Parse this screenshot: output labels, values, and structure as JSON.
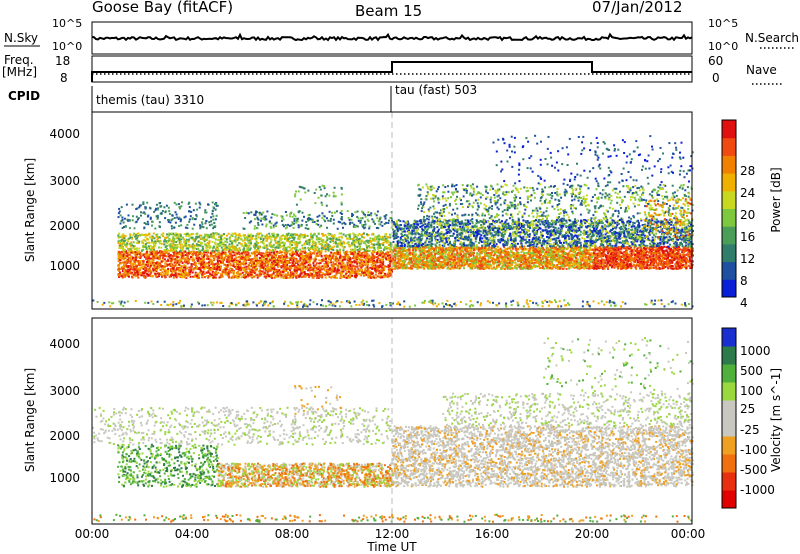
{
  "header": {
    "site": "Goose Bay (fitACF)",
    "beam": "Beam 15",
    "date": "07/Jan/2012"
  },
  "top_panels": {
    "nsky_label": "N.Sky",
    "nsearch_label": "N.Search",
    "nsky_ticks": [
      "10^5",
      "10^0"
    ],
    "nsearch_ticks": [
      "10^5",
      "10^0"
    ],
    "freq_label_1": "Freq.",
    "freq_label_2": "[MHz]",
    "freq_ticks": [
      "18",
      "8"
    ],
    "nave_label": "Nave",
    "nave_ticks": [
      "60",
      "0"
    ],
    "cpid_label": "CPID",
    "cpid_segments": [
      {
        "name": "themis (tau) 3310",
        "start_hour": 0,
        "end_hour": 12
      },
      {
        "name": "tau (fast) 503",
        "start_hour": 12,
        "end_hour": 24
      }
    ],
    "freq_steps": [
      {
        "start_hour": 0,
        "end_hour": 12,
        "level": "low"
      },
      {
        "start_hour": 12,
        "end_hour": 20,
        "level": "high"
      },
      {
        "start_hour": 20,
        "end_hour": 24,
        "level": "low"
      }
    ]
  },
  "chart_data": [
    {
      "type": "heatmap",
      "title": "",
      "ylabel": "Slant Range [km]",
      "xlabel": "",
      "ylim": [
        180,
        4600
      ],
      "yticks": [
        "1000",
        "2000",
        "3000",
        "4000"
      ],
      "colorbar_label": "Power [dB]",
      "colorbar_ticks": [
        "28",
        "24",
        "20",
        "16",
        "12",
        "8",
        "4"
      ],
      "colors": [
        "#0a1fd8",
        "#1e4fa0",
        "#2f7d6a",
        "#4a9e5a",
        "#7ec840",
        "#c8d820",
        "#f0b000",
        "#f08000",
        "#f04a10",
        "#e01010"
      ]
    },
    {
      "type": "heatmap",
      "title": "",
      "ylabel": "Slant Range [km]",
      "xlabel": "Time UT",
      "ylim": [
        180,
        4600
      ],
      "yticks": [
        "1000",
        "2000",
        "3000",
        "4000"
      ],
      "xticks": [
        "00:00",
        "04:00",
        "08:00",
        "12:00",
        "16:00",
        "20:00",
        "00:00"
      ],
      "colorbar_label": "Velocity [m s^-1]",
      "colorbar_ticks": [
        "1000",
        "500",
        "100",
        "25",
        "-25",
        "-100",
        "-500",
        "-1000"
      ],
      "colors": [
        "#1a2fd0",
        "#2d7a4a",
        "#4fb03c",
        "#9ad840",
        "#c8c8c0",
        "#c8c8c0",
        "#f0a020",
        "#f07010",
        "#e83010",
        "#e00000"
      ]
    }
  ]
}
